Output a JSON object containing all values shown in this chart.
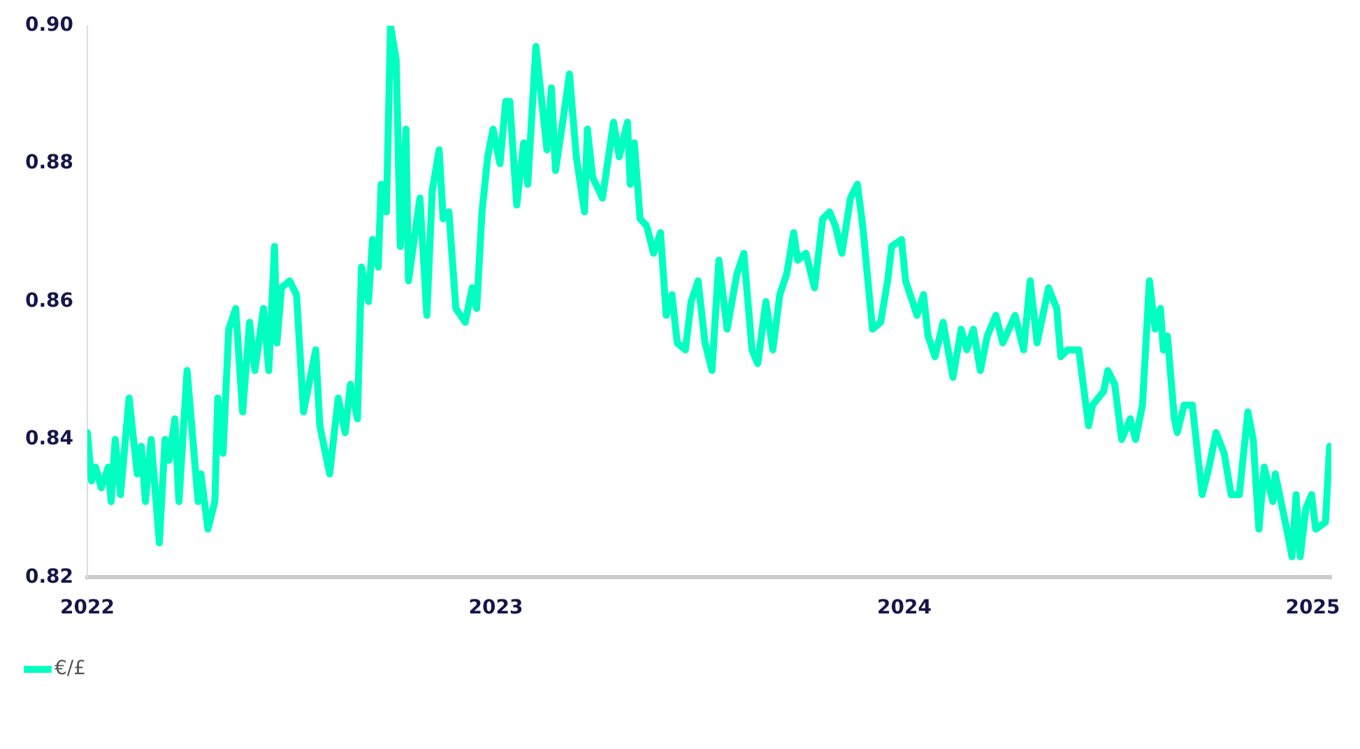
{
  "chart_data": {
    "type": "line",
    "legend": "bottom left",
    "grid": false,
    "marker": "none",
    "line_style": "solid",
    "xlim": [
      2022,
      2025.045
    ],
    "xticks": [
      2022,
      2023,
      2024,
      2025
    ],
    "ylim": [
      0.82,
      0.9
    ],
    "yticks": [
      0.82,
      0.84,
      0.86,
      0.88,
      {
        "value": 0.9,
        "label": "0.90"
      }
    ],
    "series": [
      {
        "name": "€/£",
        "color": "#00ffc0",
        "x": [
          2022.0,
          2022.01,
          2022.02,
          2022.034,
          2022.051,
          2022.058,
          2022.068,
          2022.081,
          2022.102,
          2022.122,
          2022.132,
          2022.142,
          2022.156,
          2022.176,
          2022.19,
          2022.2,
          2022.214,
          2022.224,
          2022.244,
          2022.271,
          2022.278,
          2022.295,
          2022.312,
          2022.319,
          2022.332,
          2022.346,
          2022.363,
          2022.38,
          2022.397,
          2022.41,
          2022.431,
          2022.444,
          2022.458,
          2022.464,
          2022.475,
          2022.495,
          2022.512,
          2022.529,
          2022.559,
          2022.569,
          2022.593,
          2022.614,
          2022.631,
          2022.644,
          2022.661,
          2022.671,
          2022.688,
          2022.698,
          2022.712,
          2022.719,
          2022.732,
          2022.742,
          2022.756,
          2022.766,
          2022.78,
          2022.786,
          2022.814,
          2022.831,
          2022.844,
          2022.861,
          2022.871,
          2022.885,
          2022.902,
          2022.925,
          2022.942,
          2022.953,
          2022.966,
          2022.98,
          2022.993,
          2023.01,
          2023.024,
          2023.034,
          2023.051,
          2023.068,
          2023.078,
          2023.098,
          2023.125,
          2023.136,
          2023.146,
          2023.166,
          2023.18,
          2023.197,
          2023.217,
          2023.224,
          2023.237,
          2023.261,
          2023.288,
          2023.302,
          2023.322,
          2023.329,
          2023.339,
          2023.353,
          2023.369,
          2023.386,
          2023.403,
          2023.417,
          2023.431,
          2023.444,
          2023.464,
          2023.478,
          2023.495,
          2023.512,
          2023.529,
          2023.546,
          2023.566,
          2023.59,
          2023.607,
          2023.627,
          2023.641,
          2023.661,
          2023.678,
          2023.695,
          2023.712,
          2023.729,
          2023.739,
          2023.759,
          2023.78,
          2023.8,
          2023.817,
          2023.831,
          2023.847,
          2023.868,
          2023.885,
          2023.898,
          2023.922,
          2023.942,
          2023.959,
          2023.969,
          2023.993,
          2024.003,
          2024.031,
          2024.047,
          2024.058,
          2024.075,
          2024.095,
          2024.119,
          2024.139,
          2024.153,
          2024.169,
          2024.186,
          2024.203,
          2024.224,
          2024.241,
          2024.271,
          2024.292,
          2024.308,
          2024.325,
          2024.353,
          2024.373,
          2024.383,
          2024.4,
          2024.427,
          2024.451,
          2024.461,
          2024.488,
          2024.498,
          2024.515,
          2024.532,
          2024.553,
          2024.566,
          2024.583,
          2024.6,
          2024.614,
          2024.627,
          2024.634,
          2024.644,
          2024.661,
          2024.668,
          2024.685,
          2024.705,
          2024.729,
          2024.746,
          2024.763,
          2024.783,
          2024.8,
          2024.82,
          2024.841,
          2024.854,
          2024.868,
          2024.881,
          2024.902,
          2024.908,
          2024.936,
          2024.949,
          2024.959,
          2024.969,
          2024.983,
          2024.997,
          2025.007,
          2025.031,
          2025.041
        ],
        "values": [
          0.841,
          0.834,
          0.836,
          0.833,
          0.836,
          0.831,
          0.84,
          0.832,
          0.846,
          0.835,
          0.839,
          0.831,
          0.84,
          0.825,
          0.84,
          0.837,
          0.843,
          0.831,
          0.85,
          0.831,
          0.835,
          0.827,
          0.831,
          0.846,
          0.838,
          0.856,
          0.859,
          0.844,
          0.857,
          0.85,
          0.859,
          0.85,
          0.868,
          0.854,
          0.862,
          0.863,
          0.861,
          0.844,
          0.853,
          0.842,
          0.835,
          0.846,
          0.841,
          0.848,
          0.843,
          0.865,
          0.86,
          0.869,
          0.865,
          0.877,
          0.873,
          0.9,
          0.895,
          0.868,
          0.885,
          0.863,
          0.875,
          0.858,
          0.876,
          0.882,
          0.872,
          0.873,
          0.859,
          0.857,
          0.862,
          0.859,
          0.873,
          0.881,
          0.885,
          0.88,
          0.889,
          0.889,
          0.874,
          0.883,
          0.877,
          0.897,
          0.882,
          0.891,
          0.879,
          0.887,
          0.893,
          0.881,
          0.873,
          0.885,
          0.878,
          0.875,
          0.886,
          0.881,
          0.886,
          0.877,
          0.883,
          0.872,
          0.871,
          0.867,
          0.87,
          0.858,
          0.861,
          0.854,
          0.853,
          0.86,
          0.863,
          0.854,
          0.85,
          0.866,
          0.856,
          0.864,
          0.867,
          0.853,
          0.851,
          0.86,
          0.853,
          0.861,
          0.864,
          0.87,
          0.866,
          0.867,
          0.862,
          0.872,
          0.873,
          0.871,
          0.867,
          0.875,
          0.877,
          0.871,
          0.856,
          0.857,
          0.863,
          0.868,
          0.869,
          0.863,
          0.858,
          0.861,
          0.855,
          0.852,
          0.857,
          0.849,
          0.856,
          0.853,
          0.856,
          0.85,
          0.855,
          0.858,
          0.854,
          0.858,
          0.853,
          0.863,
          0.854,
          0.862,
          0.859,
          0.852,
          0.853,
          0.853,
          0.842,
          0.845,
          0.847,
          0.85,
          0.848,
          0.84,
          0.843,
          0.84,
          0.845,
          0.863,
          0.856,
          0.859,
          0.853,
          0.855,
          0.843,
          0.841,
          0.845,
          0.845,
          0.832,
          0.836,
          0.841,
          0.838,
          0.832,
          0.832,
          0.844,
          0.84,
          0.827,
          0.836,
          0.831,
          0.835,
          0.827,
          0.823,
          0.832,
          0.823,
          0.83,
          0.832,
          0.827,
          0.828,
          0.839
        ]
      }
    ]
  }
}
